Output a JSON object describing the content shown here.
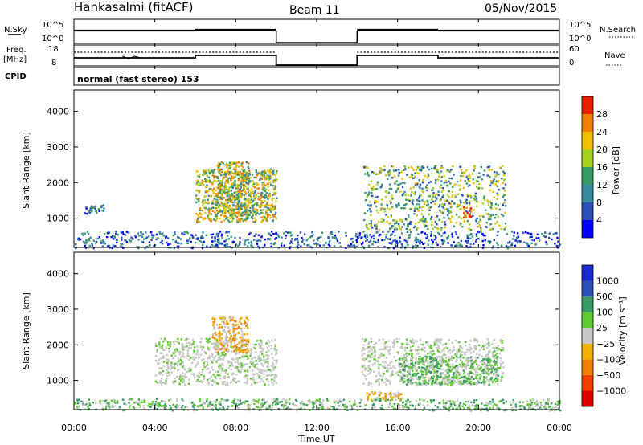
{
  "header": {
    "title": "Hankasalmi (fitACF)",
    "beam": "Beam 11",
    "date": "05/Nov/2015"
  },
  "status_panels": {
    "nsky_label": "N.Sky",
    "nsky_ticks": [
      "10^5",
      "10^0"
    ],
    "nsearch_label": "N.Search",
    "nsearch_ticks": [
      "10^5",
      "10^0"
    ],
    "freq_label": "Freq.",
    "freq_unit": "[MHz]",
    "freq_ticks": [
      "18",
      "8"
    ],
    "nave_label": "Nave",
    "nave_ticks": [
      "60",
      "0"
    ],
    "cpid_label": "CPID",
    "cpid_text": "normal (fast stereo) 153"
  },
  "chart_data": [
    {
      "type": "heatmap",
      "name": "power",
      "ylabel": "Slant Range [km]",
      "xlabel": "",
      "ylim": [
        180,
        4600
      ],
      "yticks": [
        "1000",
        "2000",
        "3000",
        "4000"
      ],
      "colorbar_label": "Power [dB]",
      "colorbar_ticks": [
        "4",
        "8",
        "12",
        "16",
        "20",
        "24",
        "28"
      ],
      "colorbar_colors": [
        "#0000ff",
        "#2a50b8",
        "#3a8aa0",
        "#3a9a66",
        "#a8d020",
        "#f0c000",
        "#f08000",
        "#e82000"
      ],
      "data_gaps_hours": [
        [
          10.0,
          14.0
        ]
      ],
      "regions": [
        {
          "t": [
            0.5,
            1.5
          ],
          "r": [
            1150,
            1400
          ],
          "level": "low"
        },
        {
          "t": [
            6.0,
            10.0
          ],
          "r": [
            900,
            2400
          ],
          "level": "high"
        },
        {
          "t": [
            7.0,
            8.6
          ],
          "r": [
            1000,
            2600
          ],
          "level": "high"
        },
        {
          "t": [
            14.3,
            21.3
          ],
          "r": [
            700,
            2500
          ],
          "level": "medium"
        },
        {
          "t": [
            19.2,
            19.6
          ],
          "r": [
            1000,
            1400
          ],
          "level": "max"
        },
        {
          "t": [
            0.0,
            24.0
          ],
          "r": [
            180,
            650
          ],
          "level": "low"
        }
      ]
    },
    {
      "type": "heatmap",
      "name": "velocity",
      "ylabel": "Slant Range [km]",
      "xlabel": "Time UT",
      "ylim": [
        180,
        4600
      ],
      "yticks": [
        "1000",
        "2000",
        "3000",
        "4000"
      ],
      "colorbar_label": "Velocity [m s⁻¹]",
      "colorbar_ticks": [
        "1000",
        "500",
        "100",
        "25",
        "−25",
        "−100",
        "−500",
        "−1000"
      ],
      "colorbar_colors": [
        "#1a2ad0",
        "#2a50b8",
        "#3a9a66",
        "#60c830",
        "#c8c8c8",
        "#f0b000",
        "#f08000",
        "#f04000",
        "#e00000"
      ],
      "data_gaps_hours": [
        [
          10.0,
          14.0
        ]
      ],
      "regions": [
        {
          "t": [
            4.0,
            10.0
          ],
          "r": [
            900,
            2200
          ],
          "level": "zero"
        },
        {
          "t": [
            6.8,
            8.6
          ],
          "r": [
            1800,
            2800
          ],
          "level": "negative"
        },
        {
          "t": [
            14.2,
            21.2
          ],
          "r": [
            900,
            2200
          ],
          "level": "zero"
        },
        {
          "t": [
            14.4,
            16.2
          ],
          "r": [
            450,
            700
          ],
          "level": "negative"
        },
        {
          "t": [
            16.0,
            21.0
          ],
          "r": [
            900,
            1700
          ],
          "level": "positive"
        },
        {
          "t": [
            0.0,
            24.0
          ],
          "r": [
            180,
            500
          ],
          "level": "positive"
        }
      ]
    }
  ],
  "time_axis": {
    "xlim_hours": [
      0,
      24
    ],
    "ticks": [
      "00:00",
      "04:00",
      "08:00",
      "12:00",
      "16:00",
      "20:00",
      "00:00"
    ]
  }
}
